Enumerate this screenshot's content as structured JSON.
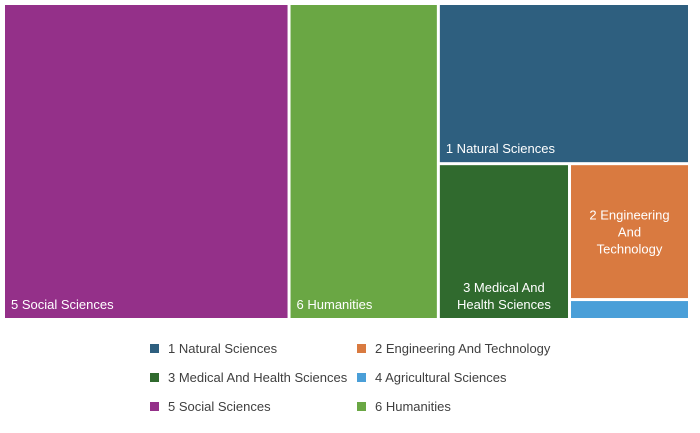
{
  "chart_data": {
    "type": "treemap",
    "title": "",
    "series": [
      {
        "name": "5 Social Sciences",
        "label_lines": [
          "5 Social Sciences"
        ],
        "value": 41.5,
        "color": "#943089"
      },
      {
        "name": "6 Humanities",
        "label_lines": [
          "6 Humanities"
        ],
        "value": 21.7,
        "color": "#6aa744"
      },
      {
        "name": "1 Natural Sciences",
        "label_lines": [
          "1 Natural Sciences"
        ],
        "value": 18.5,
        "color": "#2e5f7f"
      },
      {
        "name": "3 Medical And Health Sciences",
        "label_lines": [
          "3 Medical And",
          "Health Sciences"
        ],
        "value": 9.4,
        "color": "#306a2e"
      },
      {
        "name": "2 Engineering And Technology",
        "label_lines": [
          "2 Engineering",
          "And",
          "Technology"
        ],
        "value": 7.5,
        "color": "#d97a40"
      },
      {
        "name": "4 Agricultural Sciences",
        "label_lines": [],
        "value": 1.1,
        "color": "#4a9fd8"
      }
    ],
    "legend": {
      "position": "bottom",
      "items": [
        {
          "label": "1 Natural Sciences",
          "color": "#2e5f7f"
        },
        {
          "label": "2 Engineering And Technology",
          "color": "#d97a40"
        },
        {
          "label": "3 Medical And Health Sciences",
          "color": "#306a2e"
        },
        {
          "label": "4 Agricultural Sciences",
          "color": "#4a9fd8"
        },
        {
          "label": "5 Social Sciences",
          "color": "#943089"
        },
        {
          "label": "6 Humanities",
          "color": "#6aa744"
        }
      ]
    }
  }
}
